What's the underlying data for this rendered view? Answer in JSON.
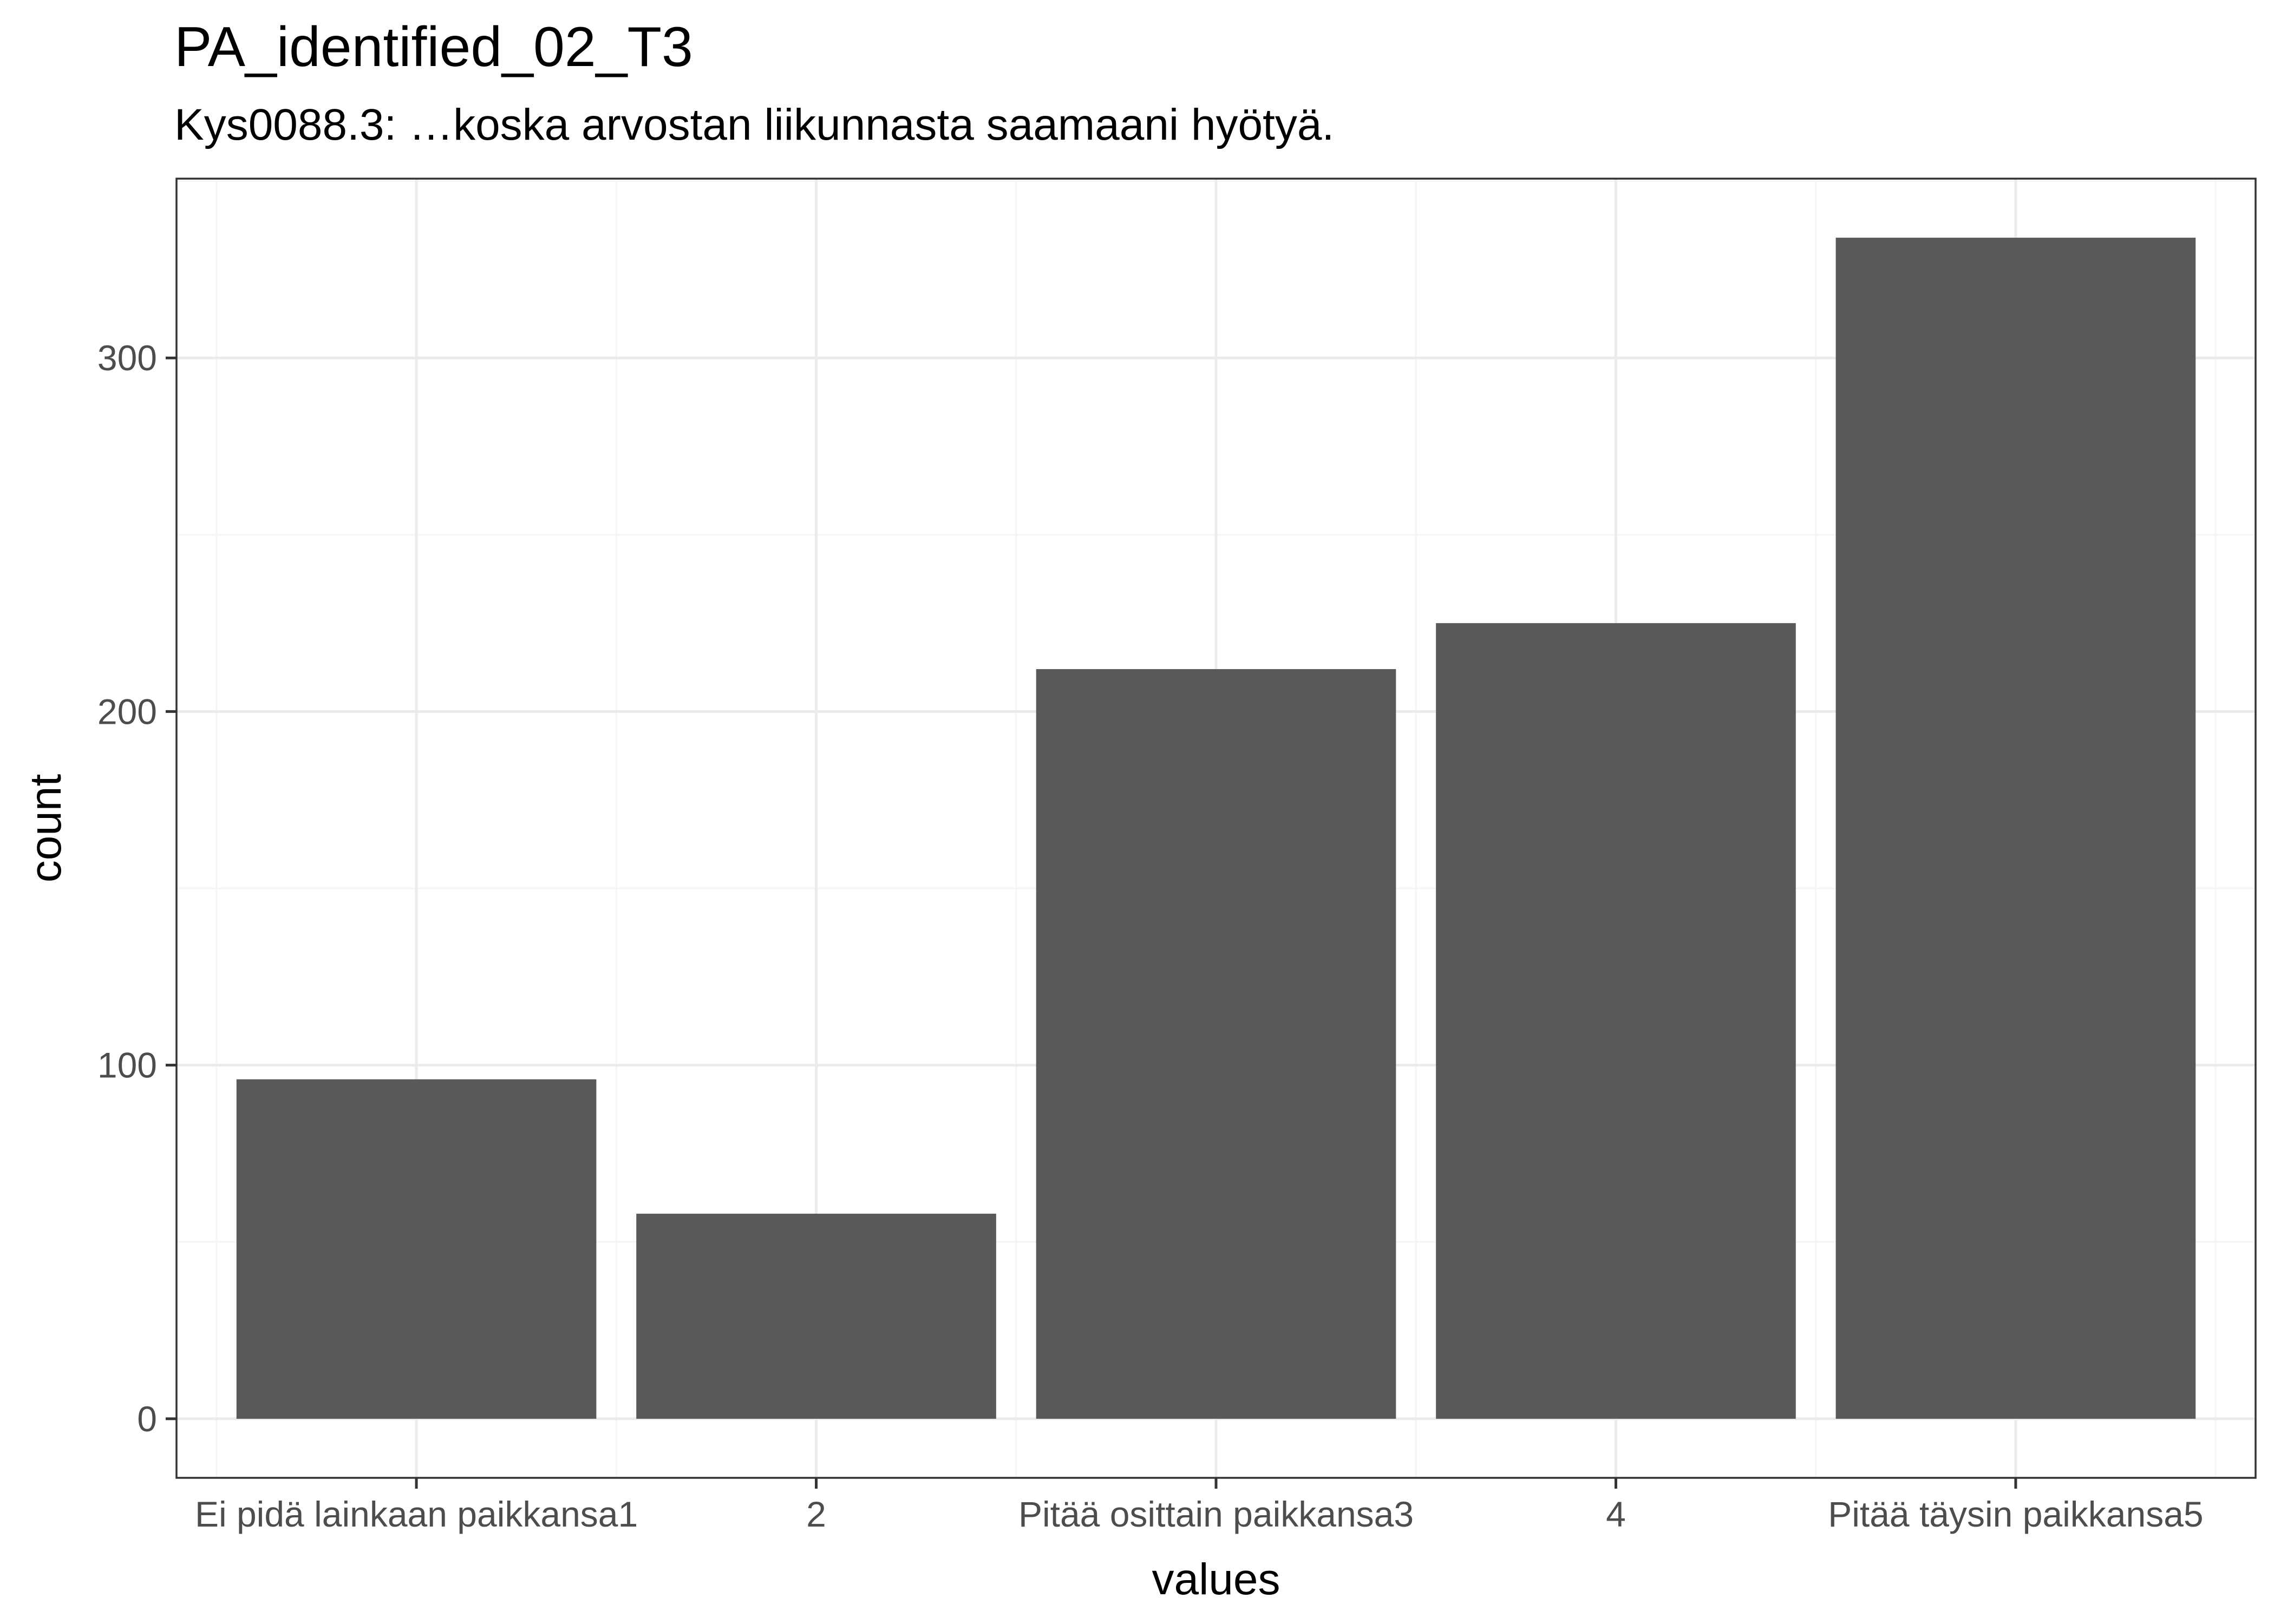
{
  "chart_data": {
    "type": "bar",
    "title": "PA_identified_02_T3",
    "subtitle": "Kys0088.3: …koska arvostan liikunnasta saamaani hyötyä.",
    "xlabel": "values",
    "ylabel": "count",
    "categories": [
      "Ei pidä lainkaan paikkansa1",
      "2",
      "Pitää osittain paikkansa3",
      "4",
      "Pitää täysin paikkansa5"
    ],
    "values": [
      96,
      58,
      212,
      225,
      334
    ],
    "ylim": [
      -16.7,
      350.7
    ],
    "yticks": [
      0,
      100,
      200,
      300
    ],
    "grid": true,
    "legend": "none",
    "colors": {
      "bar": "#595959",
      "panel_border": "#333333",
      "grid_major": "#ebebeb",
      "grid_minor": "#f5f5f5",
      "tick_text": "#4d4d4d"
    }
  }
}
